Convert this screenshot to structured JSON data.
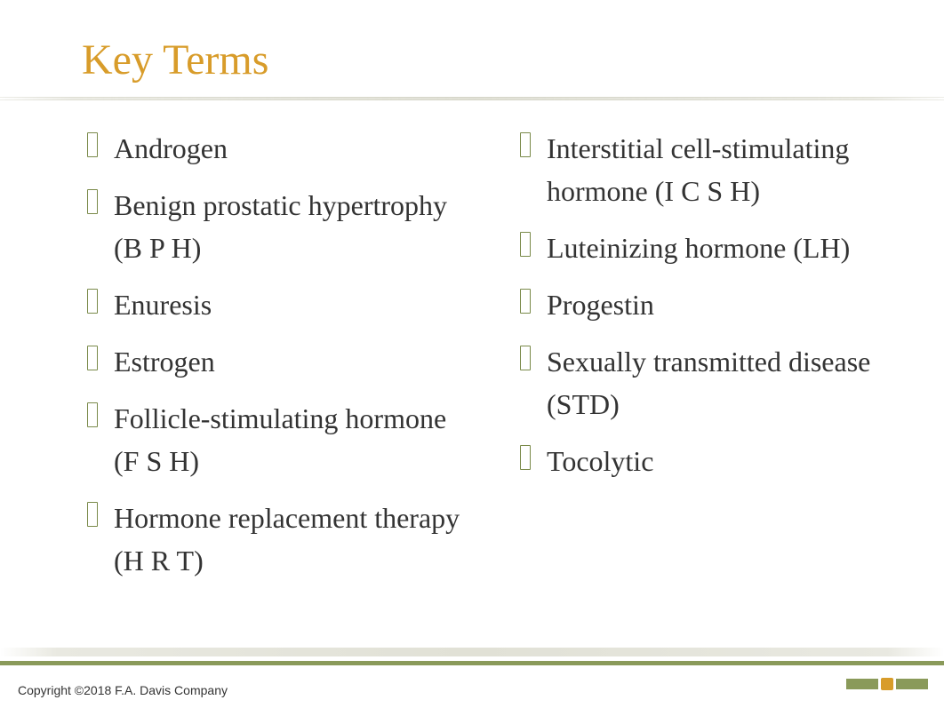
{
  "title": "Key Terms",
  "title_color": "#d89c2a",
  "text_color": "#333333",
  "bullet_color": "#7a8a4a",
  "accent_green": "#8a9a5a",
  "accent_gold": "#d89c2a",
  "background": "#ffffff",
  "term_fontsize": 32,
  "title_fontsize": 48,
  "columns": {
    "left": [
      "Androgen",
      "Benign prostatic hypertrophy (B P H)",
      "Enuresis",
      "Estrogen",
      "Follicle-stimulating hormone (F S H)",
      "Hormone replacement therapy (H R T)"
    ],
    "right": [
      "Interstitial cell-stimulating hormone (I C S H)",
      "Luteinizing hormone (LH)",
      "Progestin",
      "Sexually transmitted disease (STD)",
      "Tocolytic"
    ]
  },
  "copyright": "Copyright ©2018 F.A. Davis Company"
}
